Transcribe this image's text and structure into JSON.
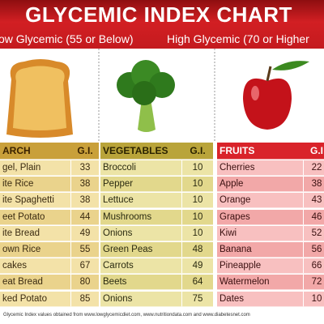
{
  "header": {
    "title": "GLYCEMIC INDEX CHART",
    "low": "ow Glycemic (55 or Below)",
    "high": "High Glycemic (70 or Higher"
  },
  "columns": [
    {
      "name": "ARCH",
      "gi": "G.I.",
      "rows": [
        [
          "gel, Plain",
          33
        ],
        [
          "ite Rice",
          38
        ],
        [
          "ite Spaghetti",
          38
        ],
        [
          "eet Potato",
          44
        ],
        [
          "ite Bread",
          49
        ],
        [
          "own Rice",
          55
        ],
        [
          "cakes",
          67
        ],
        [
          "eat Bread",
          80
        ],
        [
          "ked Potato",
          85
        ]
      ]
    },
    {
      "name": "VEGETABLES",
      "gi": "G.I.",
      "rows": [
        [
          "Broccoli",
          10
        ],
        [
          "Pepper",
          10
        ],
        [
          "Lettuce",
          10
        ],
        [
          "Mushrooms",
          10
        ],
        [
          "Onions",
          10
        ],
        [
          "Green Peas",
          48
        ],
        [
          "Carrots",
          49
        ],
        [
          "Beets",
          64
        ],
        [
          "Onions",
          75
        ]
      ]
    },
    {
      "name": "FRUITS",
      "gi": "G.I",
      "rows": [
        [
          "Cherries",
          22
        ],
        [
          "Apple",
          38
        ],
        [
          "Orange",
          43
        ],
        [
          "Grapes",
          46
        ],
        [
          "Kiwi",
          52
        ],
        [
          "Banana",
          56
        ],
        [
          "Pineapple",
          66
        ],
        [
          "Watermelon",
          72
        ],
        [
          "Dates",
          10
        ]
      ]
    }
  ],
  "footer": "Glycemic Index values obtained from www.lowglycemicdiet.com, www.nutritiondata.com and www.diabetesnet.com"
}
